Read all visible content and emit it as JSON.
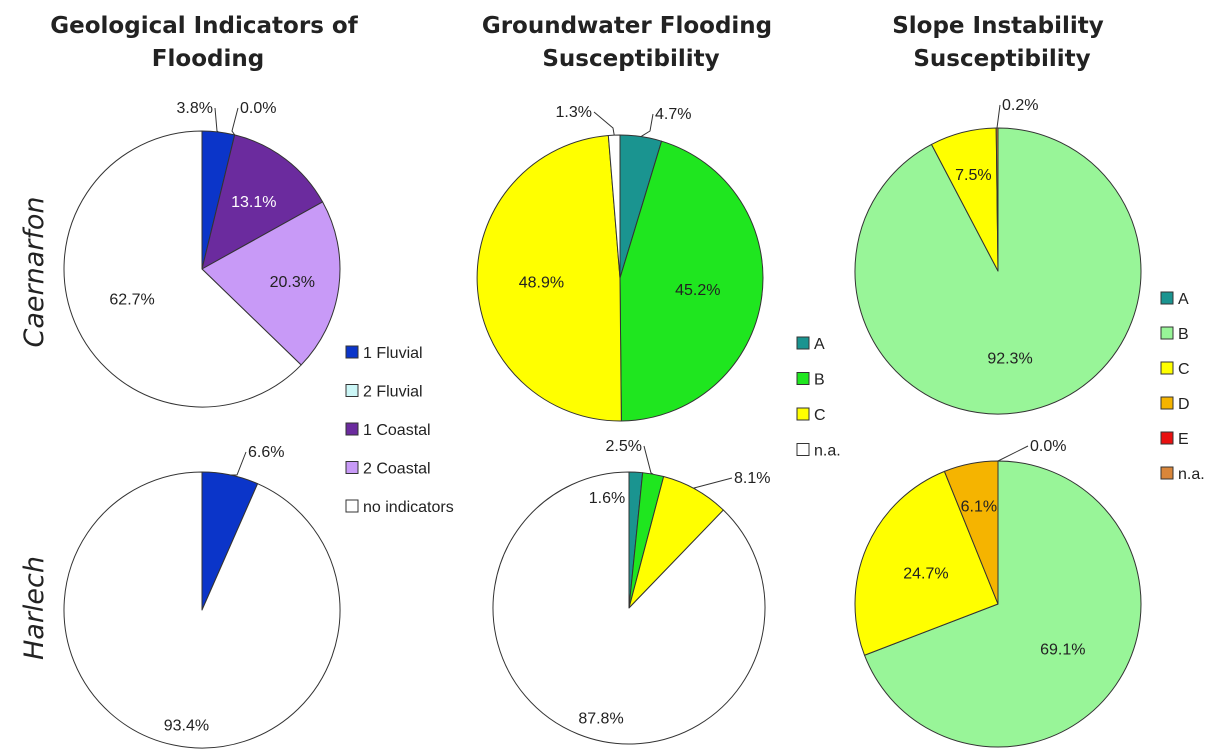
{
  "row_labels": [
    "Caernarfon",
    "Harlech"
  ],
  "chart_data": [
    {
      "type": "pie",
      "title": [
        "Geological Indicators of",
        "Flooding"
      ],
      "row": "Caernarfon",
      "legend": [
        "1 Fluvial",
        "2 Fluvial",
        "1 Coastal",
        "2 Coastal",
        "no indicators"
      ],
      "colors": [
        "#0b35c9",
        "#ccf7f7",
        "#6b2b9e",
        "#c89af7",
        "#ffffff"
      ],
      "values": [
        3.8,
        0.0,
        13.1,
        20.3,
        62.7
      ],
      "labels": [
        "3.8%",
        "0.0%",
        "13.1%",
        "20.3%",
        "62.7%"
      ]
    },
    {
      "type": "pie",
      "title": [],
      "row": "Harlech",
      "legend": [
        "1 Fluvial",
        "2 Fluvial",
        "1 Coastal",
        "2 Coastal",
        "no indicators"
      ],
      "colors": [
        "#0b35c9",
        "#ccf7f7",
        "#6b2b9e",
        "#c89af7",
        "#ffffff"
      ],
      "values": [
        6.6,
        0.0,
        0.0,
        0.0,
        93.4
      ],
      "labels": [
        "6.6%",
        "",
        "",
        "",
        "93.4%"
      ]
    },
    {
      "type": "pie",
      "title": [
        "Groundwater Flooding",
        "Susceptibility"
      ],
      "row": "Caernarfon",
      "legend": [
        "A",
        "B",
        "C",
        "n.a."
      ],
      "colors": [
        "#1a9490",
        "#1fe61f",
        "#ffff00",
        "#ffffff"
      ],
      "values": [
        4.7,
        45.2,
        48.9,
        1.3
      ],
      "labels": [
        "4.7%",
        "45.2%",
        "48.9%",
        "1.3%"
      ]
    },
    {
      "type": "pie",
      "title": [],
      "row": "Harlech",
      "legend": [
        "A",
        "B",
        "C",
        "n.a."
      ],
      "colors": [
        "#1a9490",
        "#1fe61f",
        "#ffff00",
        "#ffffff"
      ],
      "values": [
        1.6,
        2.5,
        8.1,
        87.8
      ],
      "labels": [
        "1.6%",
        "2.5%",
        "8.1%",
        "87.8%"
      ]
    },
    {
      "type": "pie",
      "title": [
        "Slope Instability",
        "Susceptibility"
      ],
      "row": "Caernarfon",
      "legend": [
        "A",
        "B",
        "C",
        "D",
        "E",
        "n.a."
      ],
      "colors": [
        "#1a9490",
        "#98f598",
        "#ffff00",
        "#f5b400",
        "#e81010",
        "#d9863a"
      ],
      "values": [
        0.0,
        92.3,
        7.5,
        0.0,
        0.0,
        0.2
      ],
      "labels": [
        "",
        "92.3%",
        "7.5%",
        "",
        "",
        "0.2%"
      ]
    },
    {
      "type": "pie",
      "title": [],
      "row": "Harlech",
      "legend": [
        "A",
        "B",
        "C",
        "D",
        "E",
        "n.a."
      ],
      "colors": [
        "#1a9490",
        "#98f598",
        "#ffff00",
        "#f5b400",
        "#e81010",
        "#d9863a"
      ],
      "values": [
        0.0,
        69.1,
        24.7,
        6.1,
        0.0,
        0.0
      ],
      "labels": [
        "",
        "69.1%",
        "24.7%",
        "6.1%",
        "",
        "0.0%"
      ]
    }
  ]
}
